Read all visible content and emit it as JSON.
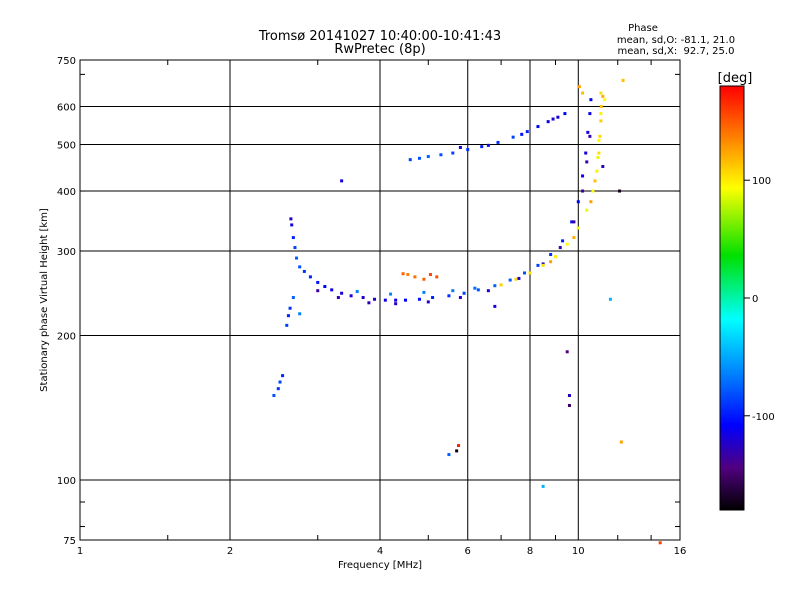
{
  "chart_data": {
    "type": "scatter",
    "title": "Tromsø 20141027 10:40:00-10:41:43",
    "subtitle": "RwPretec (8p)",
    "xlabel": "Frequency [MHz]",
    "ylabel": "Stationary phase Virtual Height [km]",
    "x_scale": "log",
    "y_scale": "log",
    "xlim": [
      1,
      16
    ],
    "ylim": [
      75,
      750
    ],
    "grid": true,
    "x_ticks": [
      1,
      2,
      4,
      6,
      8,
      10,
      16
    ],
    "x_tick_labels": [
      "1",
      "2",
      "4",
      "6",
      "8",
      "10",
      "16"
    ],
    "y_ticks": [
      75,
      100,
      200,
      300,
      400,
      500,
      600,
      750
    ],
    "y_tick_labels": [
      "75",
      "100",
      "200",
      "300",
      "400",
      "500",
      "600",
      "750"
    ],
    "stats": {
      "heading": "Phase",
      "line1": "mean, sd,O: -81.1, 21.0",
      "line2": "mean, sd,X:  92.7, 25.0"
    },
    "colorbar": {
      "label": "[deg]",
      "range": [
        -180,
        180
      ],
      "ticks": [
        100,
        0,
        -100
      ],
      "tick_labels": [
        "100",
        "0",
        "-100"
      ],
      "colormap": "rainbow"
    },
    "series": [
      {
        "values": [
          [
            2.65,
            350,
            -120
          ],
          [
            2.66,
            340,
            -110
          ],
          [
            2.68,
            320,
            -90
          ],
          [
            2.7,
            305,
            -80
          ],
          [
            2.72,
            290,
            -70
          ],
          [
            2.76,
            278,
            -75
          ],
          [
            2.82,
            272,
            -85
          ],
          [
            2.9,
            265,
            -90
          ],
          [
            3.0,
            258,
            -95
          ],
          [
            3.1,
            253,
            -100
          ],
          [
            3.2,
            249,
            -105
          ],
          [
            3.35,
            245,
            -110
          ],
          [
            3.5,
            242,
            -112
          ],
          [
            3.7,
            240,
            -115
          ],
          [
            3.9,
            238,
            -115
          ],
          [
            4.1,
            237,
            -110
          ],
          [
            4.3,
            237,
            -105
          ],
          [
            4.5,
            237,
            -100
          ],
          [
            4.8,
            238,
            -95
          ],
          [
            5.1,
            240,
            -90
          ],
          [
            5.5,
            242,
            -85
          ],
          [
            5.9,
            245,
            -80
          ],
          [
            6.3,
            249,
            -75
          ],
          [
            6.8,
            254,
            -70
          ],
          [
            7.3,
            261,
            -72
          ],
          [
            7.8,
            270,
            -75
          ],
          [
            8.3,
            280,
            -80
          ],
          [
            8.8,
            295,
            -85
          ],
          [
            9.3,
            315,
            -90
          ],
          [
            9.7,
            345,
            -95
          ],
          [
            10.0,
            380,
            -100
          ],
          [
            10.2,
            430,
            -105
          ],
          [
            10.35,
            480,
            -110
          ],
          [
            10.45,
            530,
            -110
          ],
          [
            10.55,
            580,
            -105
          ],
          [
            10.6,
            620,
            -100
          ],
          [
            3.0,
            248,
            -130
          ],
          [
            3.3,
            240,
            -125
          ],
          [
            3.8,
            234,
            -122
          ],
          [
            4.3,
            233,
            -120
          ],
          [
            5.0,
            235,
            -118
          ],
          [
            5.8,
            240,
            -115
          ],
          [
            6.6,
            248,
            -112
          ],
          [
            7.6,
            263,
            -118
          ],
          [
            8.5,
            282,
            -122
          ],
          [
            9.2,
            305,
            -125
          ],
          [
            9.8,
            345,
            -128
          ],
          [
            10.2,
            400,
            -130
          ],
          [
            10.4,
            460,
            -128
          ],
          [
            10.55,
            520,
            -125
          ],
          [
            3.6,
            247,
            -60
          ],
          [
            4.2,
            244,
            -58
          ],
          [
            4.9,
            246,
            -60
          ],
          [
            5.6,
            248,
            -62
          ],
          [
            6.2,
            251,
            -65
          ]
        ]
      },
      {
        "values": [
          [
            7.0,
            255,
            115
          ],
          [
            7.5,
            262,
            112
          ],
          [
            8.0,
            270,
            110
          ],
          [
            8.5,
            280,
            108
          ],
          [
            9.0,
            292,
            105
          ],
          [
            9.5,
            310,
            100
          ],
          [
            10.0,
            335,
            98
          ],
          [
            10.4,
            365,
            95
          ],
          [
            10.7,
            400,
            100
          ],
          [
            10.9,
            440,
            105
          ],
          [
            11.0,
            480,
            110
          ],
          [
            11.05,
            520,
            112
          ],
          [
            11.1,
            560,
            115
          ],
          [
            11.12,
            600,
            118
          ],
          [
            11.1,
            640,
            110
          ],
          [
            10.8,
            420,
            120
          ],
          [
            10.95,
            470,
            95
          ],
          [
            11.0,
            510,
            100
          ],
          [
            11.1,
            580,
            105
          ],
          [
            8.8,
            285,
            130
          ],
          [
            9.8,
            320,
            125
          ],
          [
            10.6,
            380,
            130
          ],
          [
            10.2,
            640,
            120
          ],
          [
            11.2,
            630,
            125
          ],
          [
            10.05,
            660,
            130
          ],
          [
            11.3,
            620,
            100
          ]
        ]
      },
      {
        "values": [
          [
            4.6,
            465,
            -80
          ],
          [
            4.8,
            468,
            -75
          ],
          [
            5.0,
            472,
            -70
          ],
          [
            5.3,
            476,
            -75
          ],
          [
            5.6,
            480,
            -80
          ],
          [
            6.0,
            488,
            -85
          ],
          [
            6.4,
            495,
            -90
          ],
          [
            6.9,
            505,
            -85
          ],
          [
            7.4,
            518,
            -80
          ],
          [
            7.9,
            532,
            -90
          ],
          [
            8.3,
            545,
            -100
          ],
          [
            8.7,
            558,
            -105
          ],
          [
            9.1,
            570,
            -110
          ],
          [
            9.4,
            580,
            -100
          ],
          [
            5.8,
            493,
            -110
          ],
          [
            6.6,
            498,
            -105
          ],
          [
            7.7,
            525,
            -95
          ],
          [
            8.9,
            565,
            -115
          ]
        ]
      },
      {
        "values": [
          [
            2.5,
            155,
            -85
          ],
          [
            2.52,
            160,
            -80
          ],
          [
            2.55,
            165,
            -90
          ],
          [
            2.45,
            150,
            -75
          ],
          [
            2.6,
            210,
            -80
          ],
          [
            2.62,
            220,
            -90
          ],
          [
            2.64,
            228,
            -85
          ],
          [
            2.68,
            240,
            -70
          ],
          [
            2.76,
            222,
            -60
          ],
          [
            3.35,
            420,
            -110
          ],
          [
            4.45,
            269,
            150
          ],
          [
            4.55,
            268,
            140
          ],
          [
            4.7,
            265,
            145
          ],
          [
            4.9,
            262,
            150
          ],
          [
            5.05,
            268,
            160
          ],
          [
            5.2,
            265,
            155
          ],
          [
            5.5,
            113,
            -70
          ],
          [
            5.7,
            115,
            -175
          ],
          [
            5.75,
            118,
            170
          ],
          [
            6.8,
            230,
            -110
          ],
          [
            8.5,
            97,
            -40
          ],
          [
            9.5,
            185,
            -140
          ],
          [
            9.6,
            150,
            -120
          ],
          [
            9.6,
            143,
            -150
          ],
          [
            12.2,
            120,
            130
          ],
          [
            12.1,
            400,
            -170
          ],
          [
            12.3,
            680,
            120
          ],
          [
            14.6,
            74,
            160
          ],
          [
            11.6,
            238,
            -40
          ],
          [
            11.2,
            450,
            -120
          ]
        ]
      }
    ]
  }
}
